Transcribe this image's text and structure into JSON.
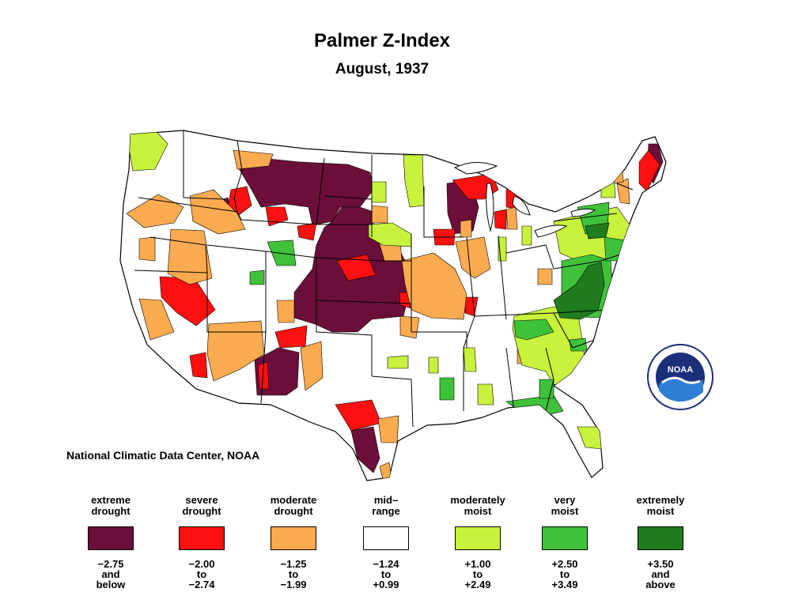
{
  "title": "Palmer Z-Index",
  "subtitle": "August, 1937",
  "credit": "National Climatic Data Center, NOAA",
  "logo": {
    "text": "NOAA",
    "ring_color": "#1b2f7a"
  },
  "legend": [
    {
      "label": "extreme\ndrought",
      "range": "−2.75\nand\nbelow",
      "color": "#6b0f3a"
    },
    {
      "label": "severe\ndrought",
      "range": "−2.00\nto\n−2.74",
      "color": "#ff1010"
    },
    {
      "label": "moderate\ndrought",
      "range": "−1.25\nto\n−1.99",
      "color": "#fbab4f"
    },
    {
      "label": "mid–\nrange",
      "range": "−1.24\nto\n+0.99",
      "color": "#ffffff"
    },
    {
      "label": "moderately\nmoist",
      "range": "+1.00\nto\n+2.49",
      "color": "#c8f23c"
    },
    {
      "label": "very\nmoist",
      "range": "+2.50\nto\n+3.49",
      "color": "#3fc23a"
    },
    {
      "label": "extremely\nmoist",
      "range": "+3.50\nand\nabove",
      "color": "#1f7c1f"
    }
  ]
}
